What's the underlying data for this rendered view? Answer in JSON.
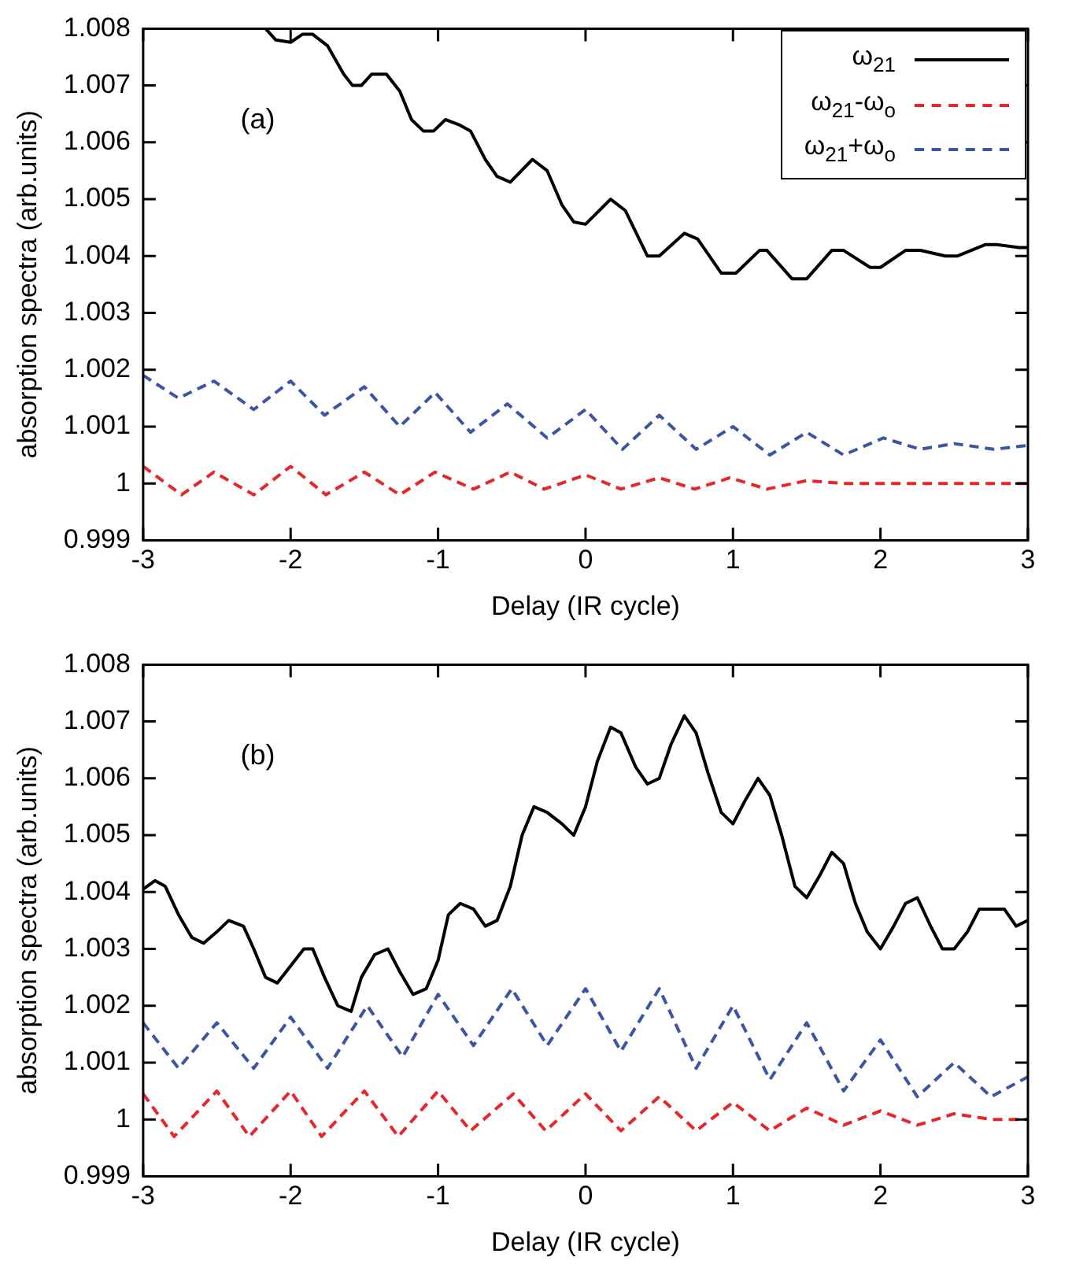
{
  "chart_data": [
    {
      "type": "line",
      "xlabel": "Delay (IR cycle)",
      "ylabel": "absorption spectra (arb.units)",
      "annotations": [
        "(a)"
      ],
      "xlim": [
        -3,
        3
      ],
      "xticks": [
        -3,
        -2,
        -1,
        0,
        1,
        2,
        3
      ],
      "ylim": [
        0.999,
        1.008
      ],
      "yticks": [
        0.999,
        1,
        1.001,
        1.002,
        1.003,
        1.004,
        1.005,
        1.006,
        1.007,
        1.008
      ],
      "grid": false,
      "legend": "top right",
      "marker": "none",
      "series": [
        {
          "name": "ω$_{21}$",
          "color": "#000000",
          "line_style": "solid",
          "x": [
            -2.17,
            -2.1,
            -2,
            -1.92,
            -1.85,
            -1.75,
            -1.64,
            -1.58,
            -1.52,
            -1.45,
            -1.35,
            -1.26,
            -1.18,
            -1.1,
            -1.03,
            -0.95,
            -0.85,
            -0.78,
            -0.68,
            -0.6,
            -0.51,
            -0.36,
            -0.26,
            -0.16,
            -0.08,
            0,
            0.17,
            0.27,
            0.42,
            0.5,
            0.67,
            0.76,
            0.92,
            1.02,
            1.18,
            1.23,
            1.4,
            1.5,
            1.67,
            1.75,
            1.93,
            2,
            2.17,
            2.27,
            2.44,
            2.52,
            2.71,
            2.79,
            2.94,
            3
          ],
          "values": [
            1.008,
            1.0078,
            1.00776,
            1.0079,
            1.0079,
            1.0077,
            1.0072,
            1.007,
            1.007,
            1.0072,
            1.0072,
            1.0069,
            1.0064,
            1.0062,
            1.0062,
            1.0064,
            1.0063,
            1.0062,
            1.0057,
            1.0054,
            1.0053,
            1.0057,
            1.0055,
            1.0049,
            1.0046,
            1.00456,
            1.005,
            1.0048,
            1.004,
            1.004,
            1.0044,
            1.0043,
            1.0037,
            1.0037,
            1.0041,
            1.0041,
            1.0036,
            1.0036,
            1.0041,
            1.0041,
            1.0038,
            1.0038,
            1.0041,
            1.0041,
            1.004,
            1.004,
            1.0042,
            1.0042,
            1.00415,
            1.00415
          ]
        },
        {
          "name": "ω$_{21}$-ω$_{o}$",
          "color": "#e8262a",
          "line_style": "dashed",
          "x": [
            -3,
            -2.74,
            -2.52,
            -2.25,
            -2,
            -1.76,
            -1.5,
            -1.26,
            -1.02,
            -0.76,
            -0.51,
            -0.28,
            0,
            0.24,
            0.5,
            0.74,
            0.98,
            1.23,
            1.5,
            1.75,
            2.02,
            2.27,
            2.52,
            2.75,
            3
          ],
          "values": [
            1.0003,
            0.9998,
            1.0002,
            0.9998,
            1.0003,
            0.9998,
            1.0002,
            0.9998,
            1.0002,
            0.9999,
            1.0002,
            0.9999,
            1.00015,
            0.9999,
            1.0001,
            0.9999,
            1.0001,
            0.9999,
            1.00005,
            1,
            1,
            1,
            1,
            1,
            1
          ]
        },
        {
          "name": "ω$_{21}$+ω$_{o}$",
          "color": "#3a55a4",
          "line_style": "dashed",
          "x": [
            -3,
            -2.76,
            -2.52,
            -2.25,
            -2,
            -1.77,
            -1.5,
            -1.26,
            -1.02,
            -0.78,
            -0.53,
            -0.26,
            0,
            0.25,
            0.5,
            0.75,
            1,
            1.25,
            1.5,
            1.75,
            2.02,
            2.27,
            2.5,
            2.77,
            3
          ],
          "values": [
            1.0019,
            1.0015,
            1.0018,
            1.0013,
            1.0018,
            1.0012,
            1.0017,
            1.001,
            1.0016,
            1.0009,
            1.0014,
            1.0008,
            1.0013,
            1.0006,
            1.0012,
            1.0006,
            1.001,
            1.0005,
            1.0009,
            1.0005,
            1.0008,
            1.0006,
            1.0007,
            1.0006,
            1.00067
          ]
        }
      ]
    },
    {
      "type": "line",
      "xlabel": "Delay (IR cycle)",
      "ylabel": "absorption spectra (arb.units)",
      "annotations": [
        "(b)"
      ],
      "xlim": [
        -3,
        3
      ],
      "xticks": [
        -3,
        -2,
        -1,
        0,
        1,
        2,
        3
      ],
      "ylim": [
        0.999,
        1.008
      ],
      "yticks": [
        0.999,
        1,
        1.001,
        1.002,
        1.003,
        1.004,
        1.005,
        1.006,
        1.007,
        1.008
      ],
      "grid": false,
      "legend": false,
      "marker": "none",
      "series": [
        {
          "color": "#000000",
          "line_style": "solid",
          "x": [
            -3,
            -2.92,
            -2.85,
            -2.76,
            -2.67,
            -2.59,
            -2.5,
            -2.42,
            -2.32,
            -2.25,
            -2.17,
            -2.09,
            -1.91,
            -1.85,
            -1.77,
            -1.68,
            -1.59,
            -1.52,
            -1.43,
            -1.34,
            -1.26,
            -1.17,
            -1.08,
            -1,
            -0.93,
            -0.85,
            -0.76,
            -0.68,
            -0.6,
            -0.51,
            -0.43,
            -0.35,
            -0.26,
            -0.16,
            -0.08,
            0,
            0.08,
            0.17,
            0.24,
            0.34,
            0.42,
            0.5,
            0.58,
            0.67,
            0.75,
            0.83,
            0.92,
            1,
            1.08,
            1.17,
            1.25,
            1.33,
            1.42,
            1.5,
            1.59,
            1.67,
            1.75,
            1.83,
            1.91,
            2,
            2.09,
            2.17,
            2.25,
            2.34,
            2.42,
            2.5,
            2.59,
            2.67,
            2.75,
            2.84,
            2.92,
            3
          ],
          "values": [
            1.00405,
            1.0042,
            1.0041,
            1.0036,
            1.0032,
            1.0031,
            1.0033,
            1.0035,
            1.0034,
            1.003,
            1.0025,
            1.0024,
            1.003,
            1.003,
            1.0025,
            1.002,
            1.0019,
            1.0025,
            1.0029,
            1.003,
            1.0026,
            1.0022,
            1.0023,
            1.0028,
            1.0036,
            1.0038,
            1.0037,
            1.0034,
            1.0035,
            1.0041,
            1.005,
            1.0055,
            1.0054,
            1.0052,
            1.005,
            1.0055,
            1.0063,
            1.0069,
            1.0068,
            1.0062,
            1.0059,
            1.006,
            1.0066,
            1.0071,
            1.0068,
            1.0061,
            1.0054,
            1.0052,
            1.0056,
            1.006,
            1.0057,
            1.005,
            1.0041,
            1.0039,
            1.0043,
            1.0047,
            1.0045,
            1.0038,
            1.0033,
            1.003,
            1.0034,
            1.0038,
            1.0039,
            1.0034,
            1.003,
            1.003,
            1.0033,
            1.0037,
            1.0037,
            1.0037,
            1.0034,
            1.0035
          ]
        },
        {
          "color": "#e8262a",
          "line_style": "dashed",
          "x": [
            -3,
            -2.79,
            -2.5,
            -2.28,
            -2,
            -1.79,
            -1.5,
            -1.27,
            -1,
            -0.78,
            -0.49,
            -0.27,
            0,
            0.24,
            0.5,
            0.75,
            1,
            1.25,
            1.5,
            1.75,
            2,
            2.25,
            2.5,
            2.75,
            3
          ],
          "values": [
            1.00045,
            0.9997,
            1.0005,
            0.9997,
            1.0005,
            0.9997,
            1.0005,
            0.9997,
            1.0005,
            0.9998,
            1.00045,
            0.9998,
            1.00045,
            0.9998,
            1.0004,
            0.9998,
            1.0003,
            0.9998,
            1.0002,
            0.9999,
            1.00015,
            0.9999,
            1.0001,
            1,
            1
          ]
        },
        {
          "color": "#3a55a4",
          "line_style": "dashed",
          "x": [
            -3,
            -2.76,
            -2.5,
            -2.25,
            -2,
            -1.75,
            -1.48,
            -1.24,
            -1,
            -0.76,
            -0.5,
            -0.26,
            0,
            0.24,
            0.5,
            0.75,
            1,
            1.25,
            1.5,
            1.75,
            2,
            2.25,
            2.5,
            2.75,
            3
          ],
          "values": [
            1.0017,
            1.0009,
            1.0017,
            1.0009,
            1.0018,
            1.0009,
            1.002,
            1.0011,
            1.0022,
            1.0013,
            1.0023,
            1.0013,
            1.0023,
            1.0012,
            1.0023,
            1.0009,
            1.002,
            1.0007,
            1.0017,
            1.0005,
            1.0014,
            1.0004,
            1.001,
            1.0004,
            1.00075
          ]
        }
      ]
    }
  ]
}
